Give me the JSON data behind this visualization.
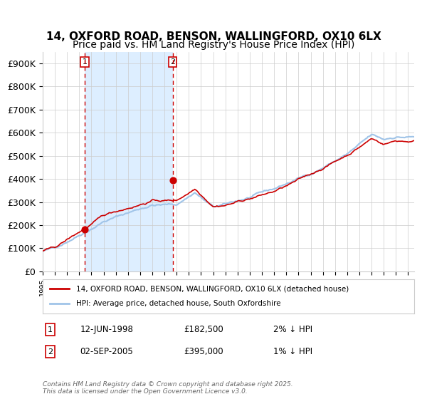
{
  "title_line1": "14, OXFORD ROAD, BENSON, WALLINGFORD, OX10 6LX",
  "title_line2": "Price paid vs. HM Land Registry's House Price Index (HPI)",
  "ylabel": "",
  "xlabel": "",
  "ylim": [
    0,
    950000
  ],
  "yticks": [
    0,
    100000,
    200000,
    300000,
    400000,
    500000,
    600000,
    700000,
    800000,
    900000
  ],
  "ytick_labels": [
    "£0",
    "£100K",
    "£200K",
    "£300K",
    "£400K",
    "£500K",
    "£600K",
    "£700K",
    "£800K",
    "£900K"
  ],
  "hpi_color": "#a0c4e8",
  "price_color": "#cc0000",
  "marker_color": "#cc0000",
  "vline_color": "#cc0000",
  "shade_color": "#ddeeff",
  "grid_color": "#cccccc",
  "background_color": "#ffffff",
  "purchase1_date": 1998.45,
  "purchase1_price": 182500,
  "purchase2_date": 2005.67,
  "purchase2_price": 395000,
  "legend_entry1": "14, OXFORD ROAD, BENSON, WALLINGFORD, OX10 6LX (detached house)",
  "legend_entry2": "HPI: Average price, detached house, South Oxfordshire",
  "table_entry1_label": "1",
  "table_entry1_date": "12-JUN-1998",
  "table_entry1_price": "£182,500",
  "table_entry1_hpi": "2% ↓ HPI",
  "table_entry2_label": "2",
  "table_entry2_date": "02-SEP-2005",
  "table_entry2_price": "£395,000",
  "table_entry2_hpi": "1% ↓ HPI",
  "footer": "Contains HM Land Registry data © Crown copyright and database right 2025.\nThis data is licensed under the Open Government Licence v3.0.",
  "title_fontsize": 11,
  "subtitle_fontsize": 10,
  "tick_fontsize": 9
}
